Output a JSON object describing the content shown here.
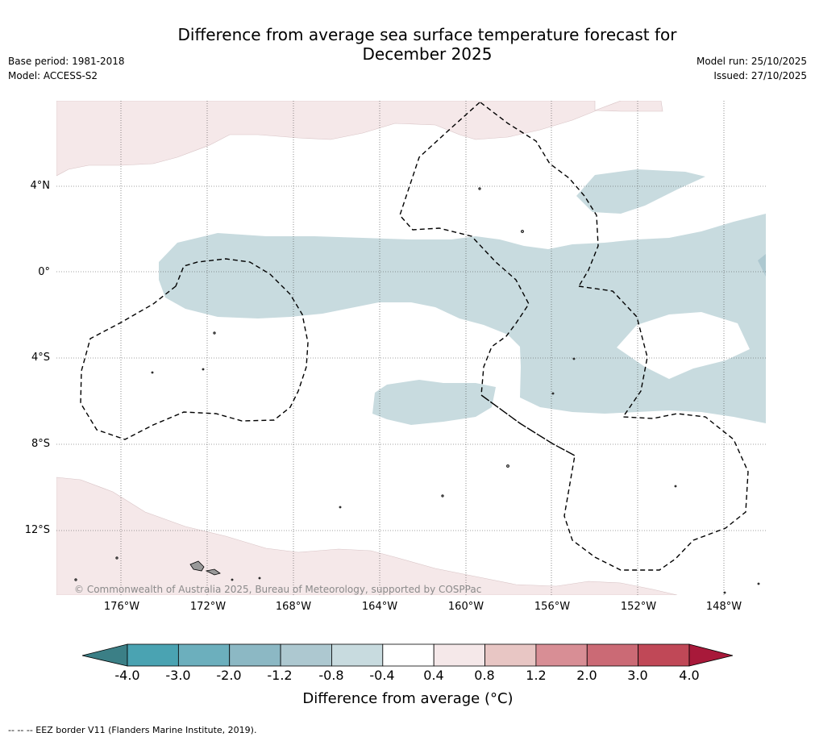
{
  "title_line1": "Difference from average sea surface temperature forecast for",
  "title_line2": "December 2025",
  "base_period": "Base period: 1981-2018",
  "model": "Model: ACCESS-S2",
  "model_run": "Model run: 25/10/2025",
  "issued": "Issued: 27/10/2025",
  "lat_labels": [
    "4°N",
    "0°",
    "4°S",
    "8°S",
    "12°S"
  ],
  "lon_labels": [
    "176°W",
    "172°W",
    "168°W",
    "164°W",
    "160°W",
    "156°W",
    "152°W",
    "148°W"
  ],
  "copyright": "© Commonwealth of Australia 2025, Bureau of Meteorology, supported by COSPPac",
  "colorbar": {
    "title": "Difference from average (°C)",
    "tick_labels": [
      "-4.0",
      "-3.0",
      "-2.0",
      "-1.2",
      "-0.8",
      "-0.4",
      "0.4",
      "0.8",
      "1.2",
      "2.0",
      "3.0",
      "4.0"
    ],
    "colors": [
      "#3b7f86",
      "#4aa3b2",
      "#6cafbd",
      "#8cb8c4",
      "#adc8d0",
      "#c8dbdf",
      "#ffffff",
      "#f5e8e9",
      "#e8c6c4",
      "#d88e95",
      "#cb6a75",
      "#c04857",
      "#a8193a"
    ],
    "bounds": [
      -4.0,
      -3.0,
      -2.0,
      -1.2,
      -0.8,
      -0.4,
      0.4,
      0.8,
      1.2,
      2.0,
      3.0,
      4.0
    ]
  },
  "footnote": "-- -- -- EEZ border V11 (Flanders Marine Institute, 2019)."
}
